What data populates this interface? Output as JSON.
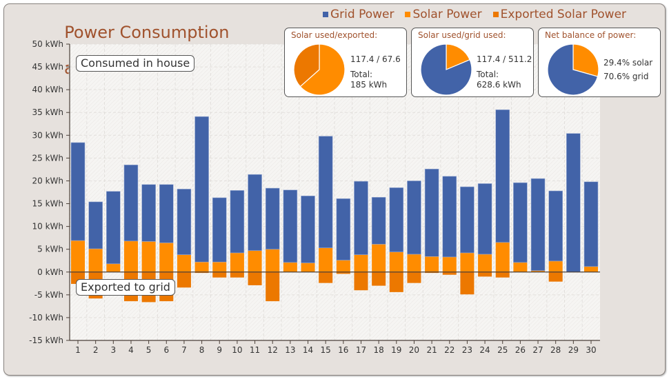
{
  "title_line1": "Power Consumption",
  "title_line2": "and Export for Nov 2011",
  "legend": [
    {
      "label": "Grid Power",
      "color": "#4263a8"
    },
    {
      "label": "Solar Power",
      "color": "#ff8c00"
    },
    {
      "label": "Exported Solar Power",
      "color": "#ec7800"
    }
  ],
  "annotations": {
    "consumed": "Consumed in house",
    "exported": "Exported to grid"
  },
  "pie_boxes": [
    {
      "header": "Solar used/exported:",
      "line1": "117.4 / 67.6",
      "line2": "Total:",
      "line3": "185 kWh",
      "slices": [
        {
          "label": "Solar used",
          "value": 117.4,
          "color": "#ff8c00"
        },
        {
          "label": "Exported",
          "value": 67.6,
          "color": "#ec7800"
        }
      ]
    },
    {
      "header": "Solar used/grid used:",
      "line1": "117.4 / 511.2",
      "line2": "Total:",
      "line3": "628.6 kWh",
      "slices": [
        {
          "label": "Solar used",
          "value": 117.4,
          "color": "#ff8c00"
        },
        {
          "label": "Grid used",
          "value": 511.2,
          "color": "#4263a8"
        }
      ]
    },
    {
      "header": "Net balance of power:",
      "line1": "29.4% solar",
      "line2": "70.6% grid",
      "line3": "",
      "slices": [
        {
          "label": "Solar",
          "value": 29.4,
          "color": "#ff8c00"
        },
        {
          "label": "Grid",
          "value": 70.6,
          "color": "#4263a8"
        }
      ]
    }
  ],
  "chart_data": {
    "type": "bar",
    "title": "Power Consumption and Export for Nov 2011",
    "xlabel": "",
    "ylabel": "",
    "ylim": [
      -15,
      50
    ],
    "yticks": [
      50,
      45,
      40,
      35,
      30,
      25,
      20,
      15,
      10,
      5,
      0,
      -5,
      -10,
      -15
    ],
    "ytick_suffix": " kWh",
    "grid": true,
    "legend_position": "top-right",
    "categories": [
      "1",
      "2",
      "3",
      "4",
      "5",
      "6",
      "7",
      "8",
      "9",
      "10",
      "11",
      "12",
      "13",
      "14",
      "15",
      "16",
      "17",
      "18",
      "19",
      "20",
      "21",
      "22",
      "23",
      "24",
      "25",
      "26",
      "27",
      "28",
      "29",
      "30"
    ],
    "series": [
      {
        "name": "Solar Power",
        "color": "#ff8c00",
        "stack": "positive",
        "values": [
          6.9,
          5.1,
          1.8,
          6.8,
          6.7,
          6.4,
          3.8,
          2.2,
          2.2,
          4.2,
          4.7,
          5.0,
          2.1,
          2.0,
          5.3,
          2.6,
          3.8,
          6.1,
          4.4,
          3.9,
          3.4,
          3.3,
          4.2,
          3.9,
          6.5,
          2.1,
          0.3,
          2.4,
          0.0,
          1.2
        ]
      },
      {
        "name": "Grid Power",
        "color": "#4263a8",
        "stack": "positive",
        "values": [
          21.5,
          10.3,
          15.9,
          16.7,
          12.5,
          12.8,
          14.4,
          31.9,
          14.1,
          13.7,
          16.7,
          13.4,
          15.9,
          14.7,
          24.5,
          13.5,
          16.1,
          10.3,
          14.1,
          16.1,
          19.2,
          17.7,
          14.5,
          15.5,
          29.1,
          17.5,
          20.2,
          15.4,
          30.4,
          18.6
        ]
      },
      {
        "name": "Exported Solar Power",
        "color": "#ec7800",
        "stack": "negative",
        "values": [
          -2.6,
          -5.8,
          0.0,
          -6.4,
          -6.6,
          -6.4,
          -3.4,
          -0.2,
          -1.2,
          -1.2,
          -2.9,
          -6.4,
          0.0,
          0.0,
          -2.4,
          -0.4,
          -4.0,
          -3.0,
          -4.4,
          -2.4,
          -0.2,
          -0.6,
          -4.9,
          -1.0,
          -1.2,
          0.0,
          0.0,
          -2.1,
          0.0,
          0.0
        ]
      }
    ]
  }
}
